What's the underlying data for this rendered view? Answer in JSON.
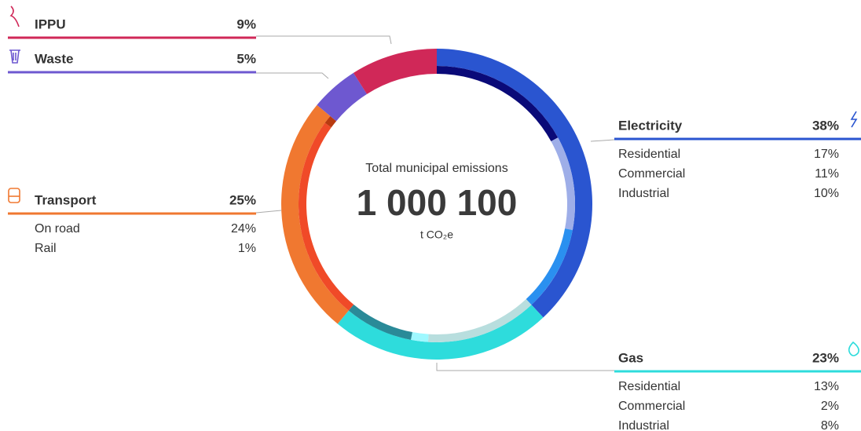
{
  "chart_data": {
    "type": "donut",
    "title": "Total municipal emissions",
    "total": "1 000 100",
    "unit": "t CO₂e",
    "sectors": [
      {
        "name": "Electricity",
        "value": 38,
        "value_label": "38%",
        "color": "#2a55d0",
        "parts": [
          {
            "name": "Residential",
            "value": 17,
            "value_label": "17%",
            "color": "#0a0a78"
          },
          {
            "name": "Commercial",
            "value": 11,
            "value_label": "11%",
            "color": "#9eaee8"
          },
          {
            "name": "Industrial",
            "value": 10,
            "value_label": "10%",
            "color": "#2a90f0"
          }
        ]
      },
      {
        "name": "Gas",
        "value": 23,
        "value_label": "23%",
        "color": "#2edcdc",
        "parts": [
          {
            "name": "Residential",
            "value": 13,
            "value_label": "13%",
            "color": "#b8dede"
          },
          {
            "name": "Commercial",
            "value": 2,
            "value_label": "2%",
            "color": "#9ff8ff"
          },
          {
            "name": "Industrial",
            "value": 8,
            "value_label": "8%",
            "color": "#2a8a98"
          }
        ]
      },
      {
        "name": "Transport",
        "value": 25,
        "value_label": "25%",
        "color": "#f07830",
        "parts": [
          {
            "name": "On road",
            "value": 24,
            "value_label": "24%",
            "color": "#f04a28"
          },
          {
            "name": "Rail",
            "value": 1,
            "value_label": "1%",
            "color": "#b83a10"
          }
        ]
      },
      {
        "name": "Waste",
        "value": 5,
        "value_label": "5%",
        "color": "#6e58d0"
      },
      {
        "name": "IPPU",
        "value": 9,
        "value_label": "9%",
        "color": "#d02858"
      }
    ]
  }
}
